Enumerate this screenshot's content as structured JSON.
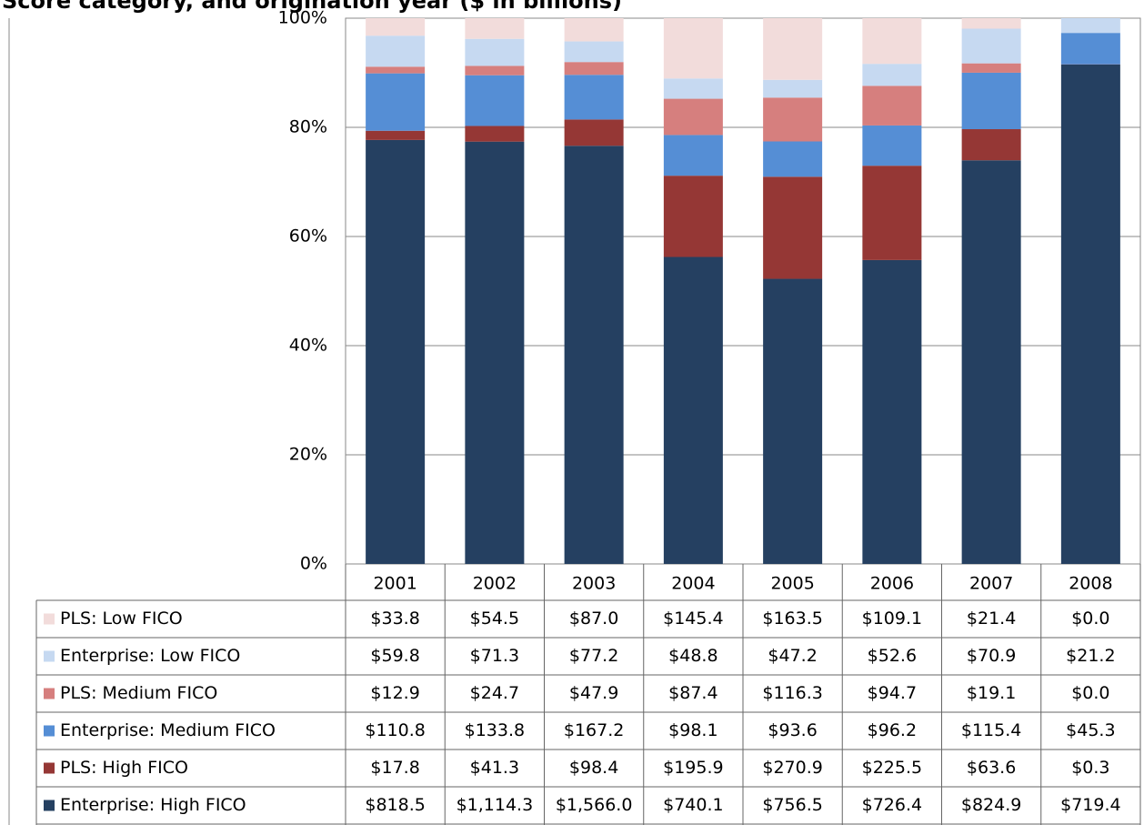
{
  "chart_data": {
    "type": "stacked_bar_100",
    "title": "Score category, and origination year ($ in billions)",
    "categories": [
      "2001",
      "2002",
      "2003",
      "2004",
      "2005",
      "2006",
      "2007",
      "2008"
    ],
    "series": [
      {
        "name": "Enterprise: High FICO",
        "color": "#254061",
        "values": [
          818.5,
          1114.3,
          1566.0,
          740.1,
          756.5,
          726.4,
          824.9,
          719.4
        ],
        "value_labels": [
          "$818.5",
          "$1,114.3",
          "$1,566.0",
          "$740.1",
          "$756.5",
          "$726.4",
          "$824.9",
          "$719.4"
        ]
      },
      {
        "name": "PLS: High FICO",
        "color": "#953735",
        "values": [
          17.8,
          41.3,
          98.4,
          195.9,
          270.9,
          225.5,
          63.6,
          0.3
        ],
        "value_labels": [
          "$17.8",
          "$41.3",
          "$98.4",
          "$195.9",
          "$270.9",
          "$225.5",
          "$63.6",
          "$0.3"
        ]
      },
      {
        "name": "Enterprise: Medium FICO",
        "color": "#558ED5",
        "values": [
          110.8,
          133.8,
          167.2,
          98.1,
          93.6,
          96.2,
          115.4,
          45.3
        ],
        "value_labels": [
          "$110.8",
          "$133.8",
          "$167.2",
          "$98.1",
          "$93.6",
          "$96.2",
          "$115.4",
          "$45.3"
        ]
      },
      {
        "name": "PLS: Medium FICO",
        "color": "#D67F7E",
        "values": [
          12.9,
          24.7,
          47.9,
          87.4,
          116.3,
          94.7,
          19.1,
          0.0
        ],
        "value_labels": [
          "$12.9",
          "$24.7",
          "$47.9",
          "$87.4",
          "$116.3",
          "$94.7",
          "$19.1",
          "$0.0"
        ]
      },
      {
        "name": "Enterprise: Low FICO",
        "color": "#C6D9F1",
        "values": [
          59.8,
          71.3,
          77.2,
          48.8,
          47.2,
          52.6,
          70.9,
          21.2
        ],
        "value_labels": [
          "$59.8",
          "$71.3",
          "$77.2",
          "$48.8",
          "$47.2",
          "$52.6",
          "$70.9",
          "$21.2"
        ]
      },
      {
        "name": "PLS: Low FICO",
        "color": "#F2DCDB",
        "values": [
          33.8,
          54.5,
          87.0,
          145.4,
          163.5,
          109.1,
          21.4,
          0.0
        ],
        "value_labels": [
          "$33.8",
          "$54.5",
          "$87.0",
          "$145.4",
          "$163.5",
          "$109.1",
          "$21.4",
          "$0.0"
        ]
      }
    ],
    "ylim": [
      0,
      100
    ],
    "yticks": [
      {
        "value": 0,
        "label": "0%"
      },
      {
        "value": 20,
        "label": "20%"
      },
      {
        "value": 40,
        "label": "40%"
      },
      {
        "value": 60,
        "label": "60%"
      },
      {
        "value": 80,
        "label": "80%"
      },
      {
        "value": 100,
        "label": "100%"
      }
    ],
    "grid": true
  }
}
